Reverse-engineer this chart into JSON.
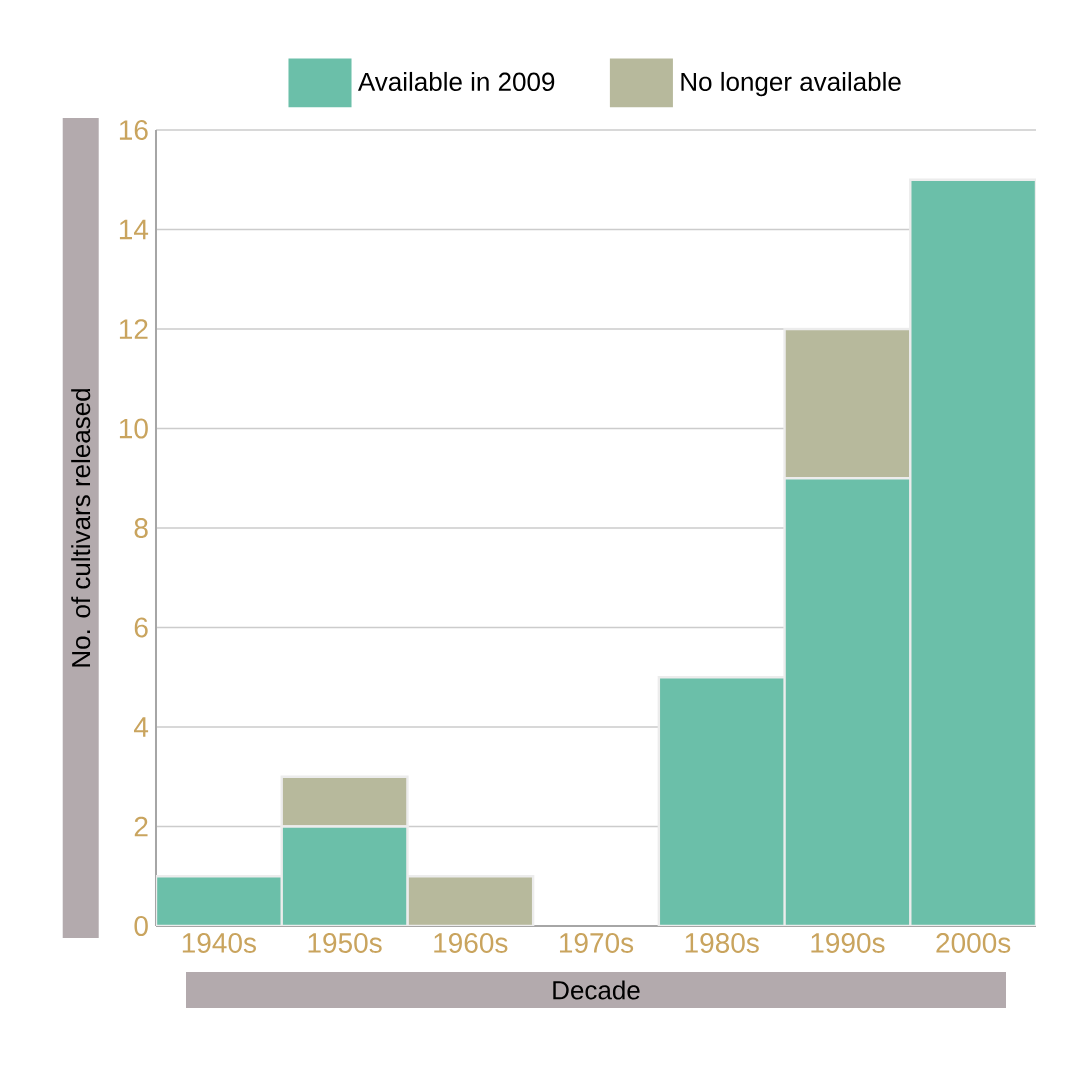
{
  "chart_data": {
    "type": "bar",
    "stacked": true,
    "xlabel": "Decade",
    "ylabel": "No. of cultivars released",
    "categories": [
      "1940s",
      "1950s",
      "1960s",
      "1970s",
      "1980s",
      "1990s",
      "2000s"
    ],
    "series": [
      {
        "name": "Available in 2009",
        "color": "#6bbfa9",
        "values": [
          1,
          2,
          0,
          0,
          5,
          9,
          15
        ]
      },
      {
        "name": "No longer available",
        "color": "#b7b99c",
        "values": [
          0,
          1,
          1,
          0,
          0,
          3,
          0
        ]
      }
    ],
    "ylim": [
      0,
      16
    ],
    "yticks": [
      0,
      2,
      4,
      6,
      8,
      10,
      12,
      14,
      16
    ],
    "grid": "y",
    "legend": "top"
  }
}
